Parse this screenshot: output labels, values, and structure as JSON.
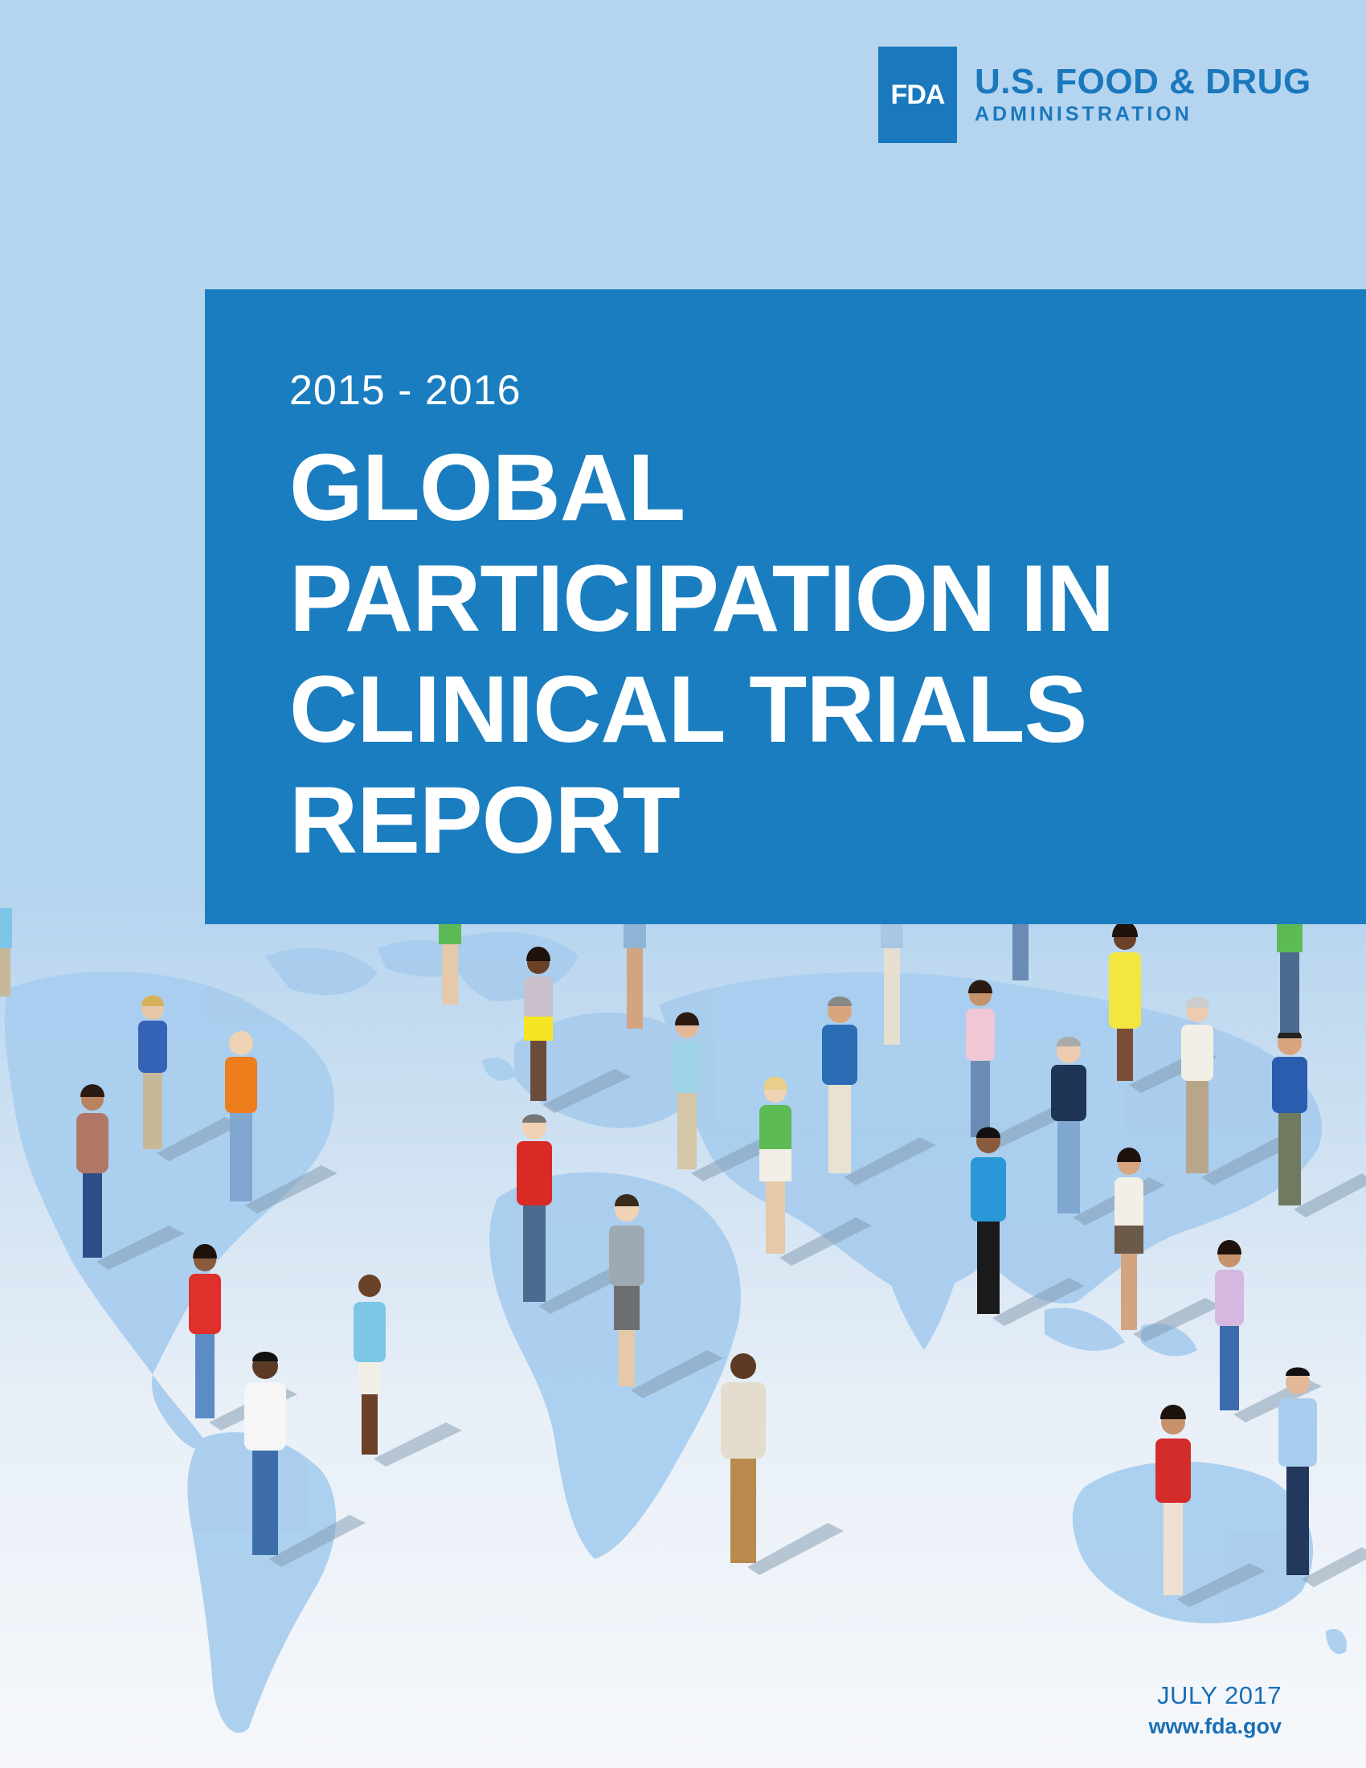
{
  "logo": {
    "mark": "FDA",
    "line1": "U.S. FOOD & DRUG",
    "line2": "ADMINISTRATION",
    "color": "#1a78bd"
  },
  "title": {
    "years": "2015 - 2016",
    "lines": [
      "GLOBAL",
      "PARTICIPATION IN",
      "CLINICAL TRIALS",
      "REPORT"
    ],
    "background": "#1a7dbf"
  },
  "illustration": {
    "description_icons": [
      "world-map-graphic",
      "people-standing-graphic"
    ]
  },
  "footer": {
    "date": "JULY 2017",
    "url": "www.fda.gov"
  }
}
